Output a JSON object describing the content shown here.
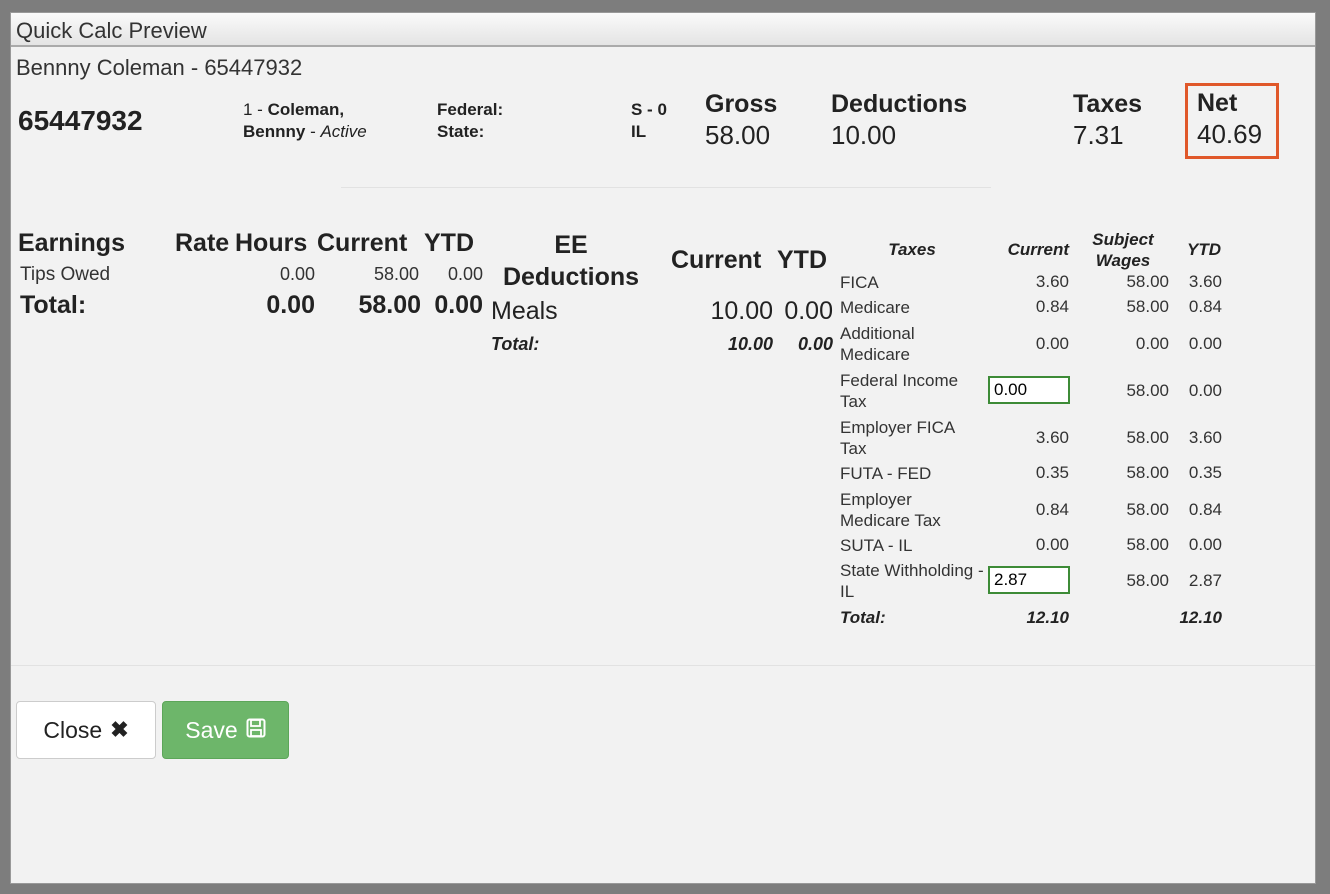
{
  "window": {
    "title": "Quick Calc Preview"
  },
  "header": {
    "subtitle": "Bennny Coleman - 65447932",
    "employee_id": "65447932",
    "emp_num": "1 - ",
    "emp_name_1": "Coleman,",
    "emp_name_2": "Bennny",
    "emp_status_sep": " - ",
    "emp_status": "Active",
    "federal_label": "Federal:",
    "state_label": "State:",
    "federal_value": "S - 0",
    "state_value": "IL"
  },
  "summary": {
    "gross_label": "Gross",
    "gross": "58.00",
    "deductions_label": "Deductions",
    "deductions": "10.00",
    "taxes_label": "Taxes",
    "taxes": "7.31",
    "net_label": "Net",
    "net": "40.69",
    "highlight_color": "#e0582a"
  },
  "earnings": {
    "headers": [
      "Earnings",
      "Rate",
      "Hours",
      "Current",
      "YTD"
    ],
    "rows": [
      {
        "name": "Tips Owed",
        "rate": "",
        "hours": "0.00",
        "current": "58.00",
        "ytd": "0.00"
      }
    ],
    "total_label": "Total:",
    "total_hours": "0.00",
    "total_current": "58.00",
    "total_ytd": "0.00"
  },
  "deductions": {
    "headers": [
      "EE Deductions",
      "Current",
      "YTD"
    ],
    "rows": [
      {
        "name": "Meals",
        "current": "10.00",
        "ytd": "0.00"
      }
    ],
    "total_label": "Total:",
    "total_current": "10.00",
    "total_ytd": "0.00"
  },
  "taxes": {
    "headers": [
      "Taxes",
      "Current",
      "Subject Wages",
      "YTD"
    ],
    "rows": [
      {
        "name": "FICA",
        "current": "3.60",
        "subject": "58.00",
        "ytd": "3.60"
      },
      {
        "name": "Medicare",
        "current": "0.84",
        "subject": "58.00",
        "ytd": "0.84"
      },
      {
        "name": "Additional Medicare",
        "current": "0.00",
        "subject": "0.00",
        "ytd": "0.00"
      },
      {
        "name": "Federal Income Tax",
        "current": "0.00",
        "subject": "58.00",
        "ytd": "0.00",
        "editable": true
      },
      {
        "name": "Employer FICA Tax",
        "current": "3.60",
        "subject": "58.00",
        "ytd": "3.60"
      },
      {
        "name": "FUTA - FED",
        "current": "0.35",
        "subject": "58.00",
        "ytd": "0.35"
      },
      {
        "name": "Employer Medicare Tax",
        "current": "0.84",
        "subject": "58.00",
        "ytd": "0.84"
      },
      {
        "name": "SUTA - IL",
        "current": "0.00",
        "subject": "58.00",
        "ytd": "0.00"
      },
      {
        "name": "State Withholding - IL",
        "current": "2.87",
        "subject": "58.00",
        "ytd": "2.87",
        "editable": true
      }
    ],
    "total_label": "Total:",
    "total_current": "12.10",
    "total_ytd": "12.10"
  },
  "buttons": {
    "close": "Close",
    "close_icon": "times-icon",
    "save": "Save",
    "save_icon": "floppy-disk-icon"
  }
}
